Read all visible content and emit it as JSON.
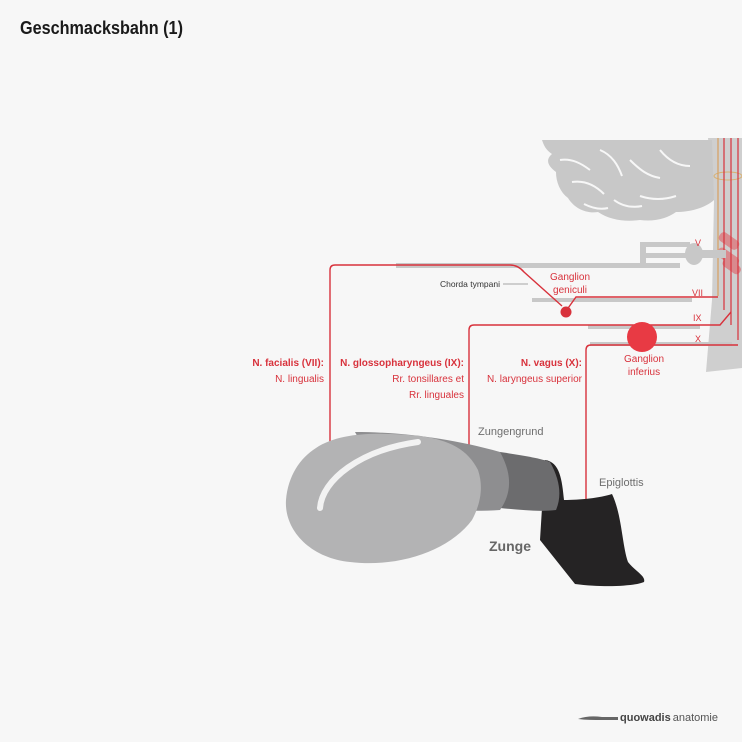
{
  "title": "Geschmacksbahn (1)",
  "nerves": {
    "facialis": {
      "name": "N. facialis (VII):",
      "branch": "N. lingualis"
    },
    "glosso": {
      "name": "N. glossopharyngeus (IX):",
      "branch1": "Rr. tonsillares et",
      "branch2": "Rr. linguales"
    },
    "vagus": {
      "name": "N. vagus (X):",
      "branch": "N. laryngeus superior"
    }
  },
  "labels": {
    "chorda": "Chorda tympani",
    "ganglion_geniculi_1": "Ganglion",
    "ganglion_geniculi_2": "geniculi",
    "ganglion_inferius_1": "Ganglion",
    "ganglion_inferius_2": "inferius",
    "zungengrund": "Zungengrund",
    "epiglottis": "Epiglottis",
    "zunge": "Zunge",
    "cn_v": "V",
    "cn_vii": "VII",
    "cn_ix": "IX",
    "cn_x": "X"
  },
  "brand": {
    "name": "quowadis",
    "suffix": "anatomie"
  },
  "colors": {
    "nerve": "#d8323c",
    "tongue_light": "#b3b3b4",
    "tongue_mid": "#8e8e90",
    "tongue_dark": "#6c6c6e",
    "epiglottis": "#252324",
    "brain": "#c8c8c8"
  }
}
